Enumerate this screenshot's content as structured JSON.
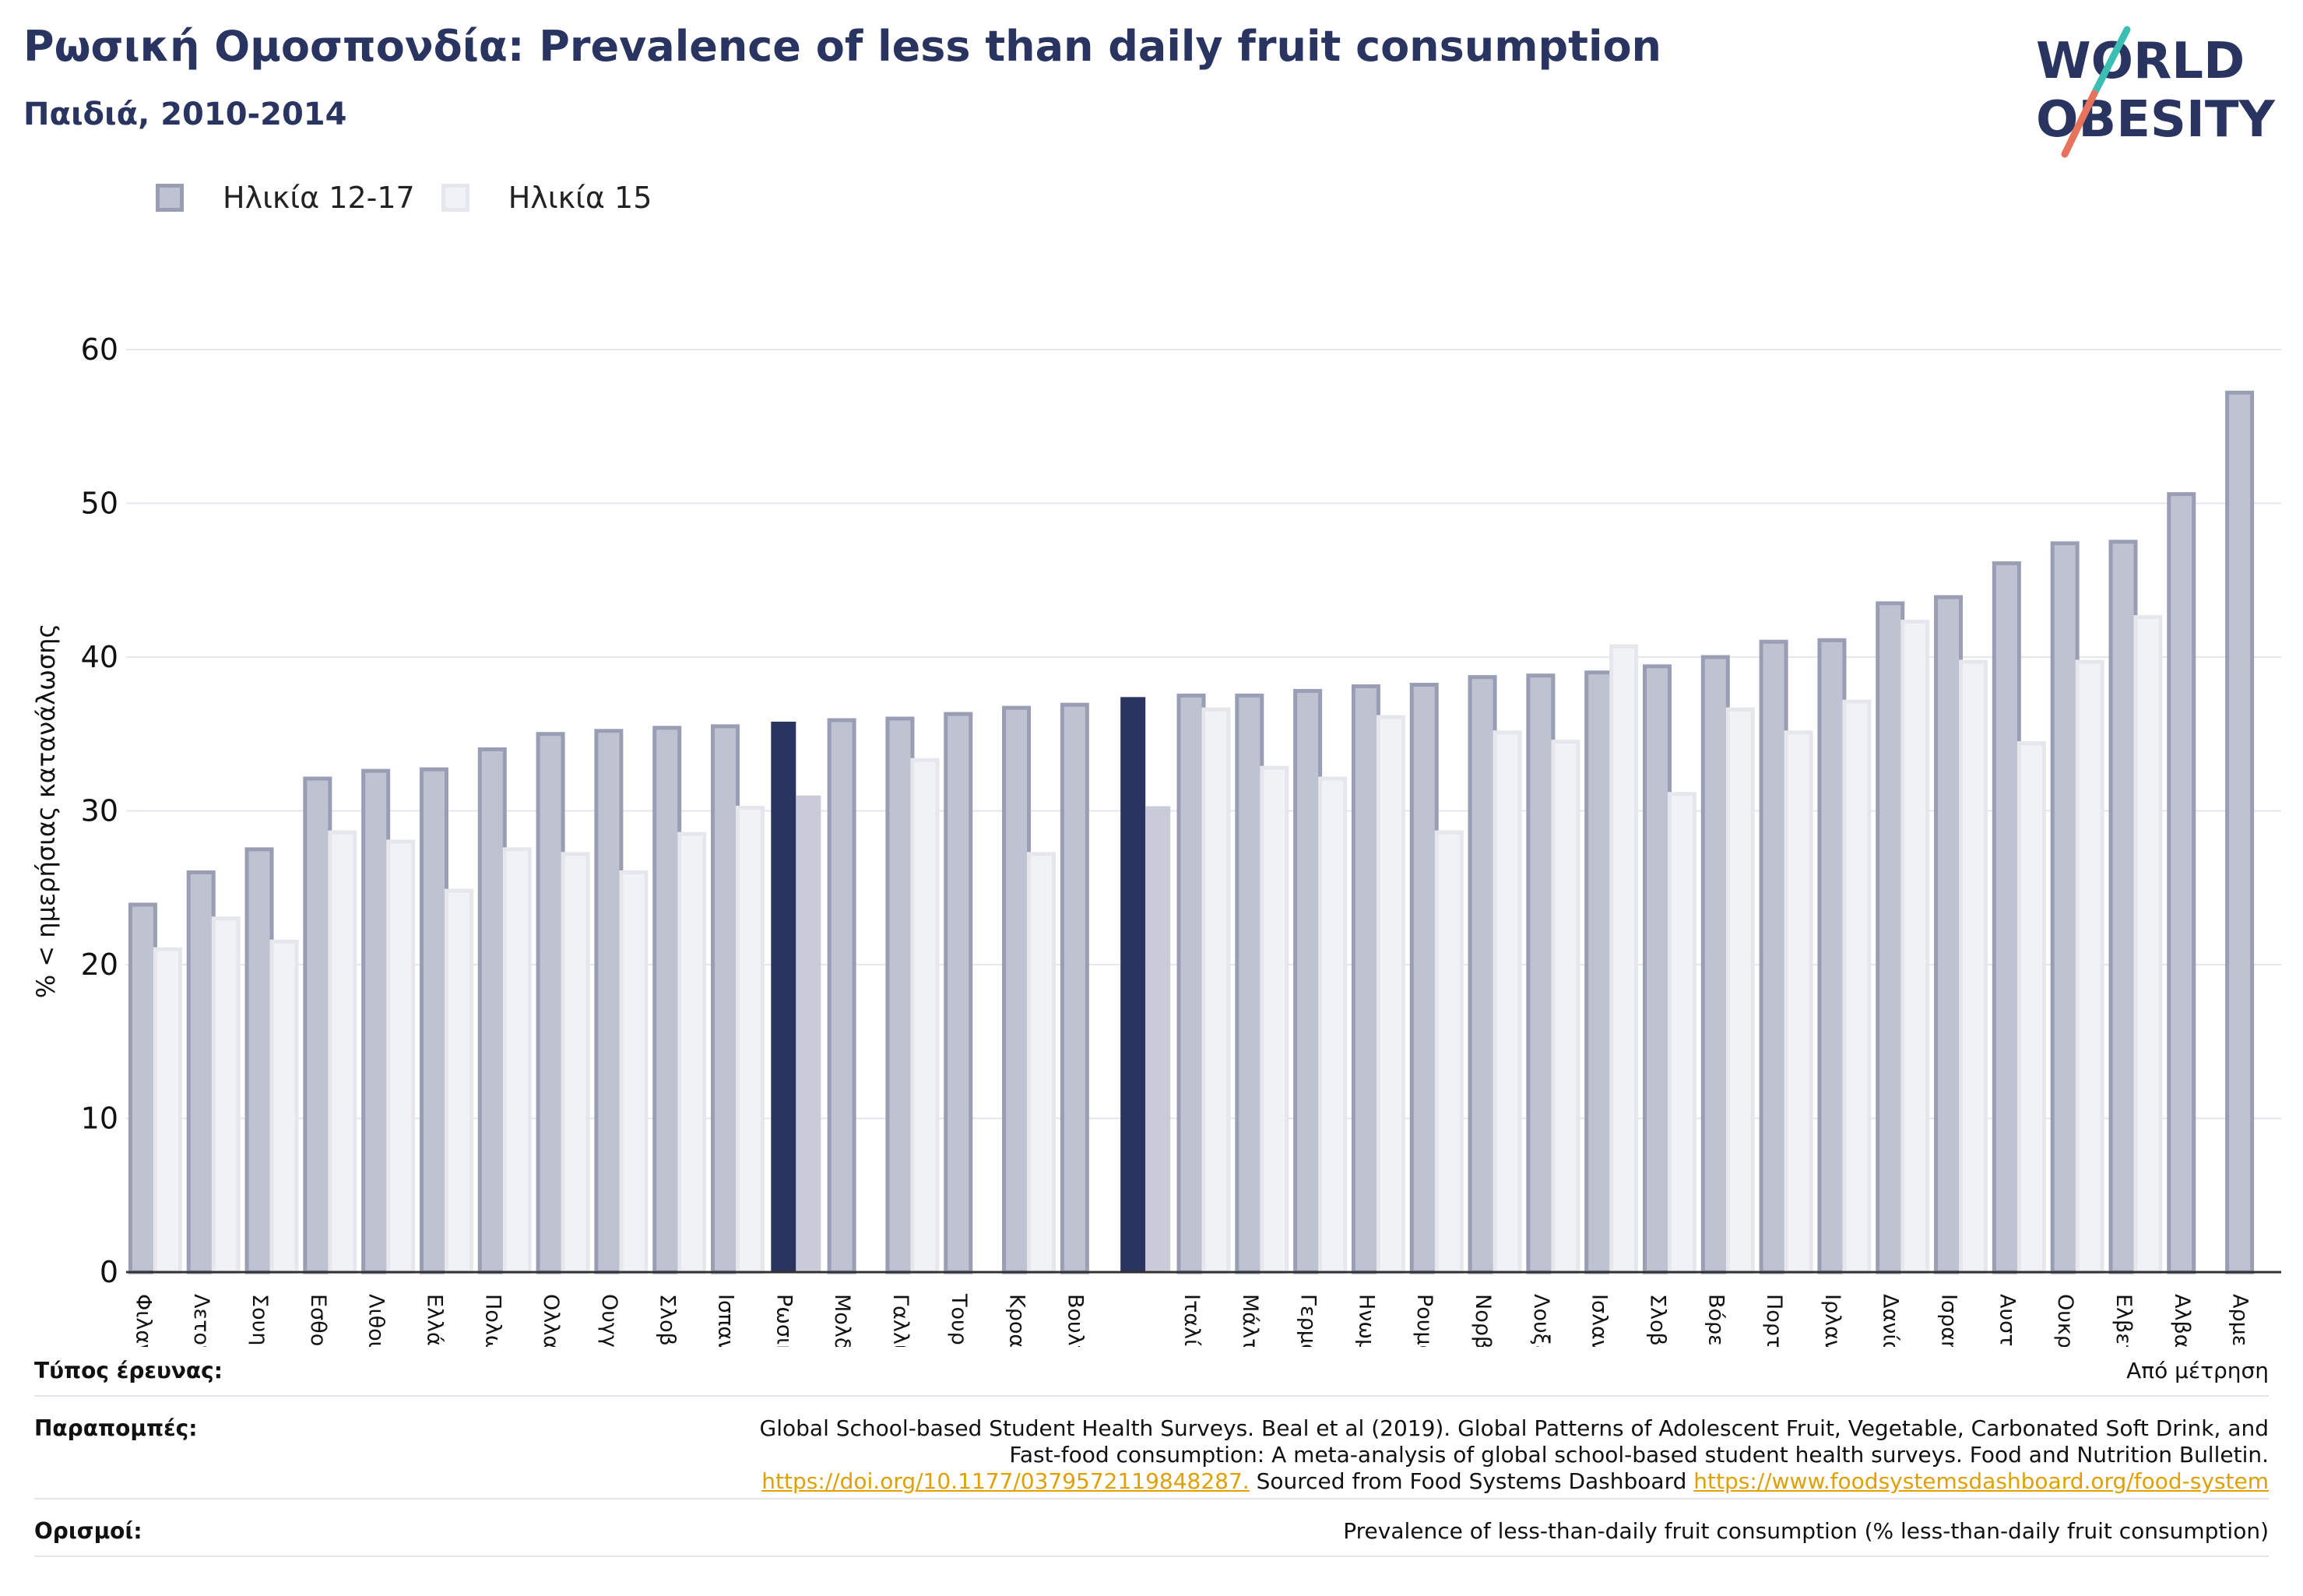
{
  "header": {
    "title": "Ρωσική Ομοσπονδία: Prevalence of less than daily fruit consumption",
    "subtitle": "Παιδιά, 2010-2014"
  },
  "logo": {
    "line1": "WORLD",
    "line2": "OBESITY"
  },
  "legend": {
    "series_a": "Ηλικία 12-17",
    "series_b": "Ηλικία 15"
  },
  "colors": {
    "series_a_fill": "#bfc2d0",
    "series_a_stroke": "#9a9eb4",
    "series_b_fill": "#f1f2f5",
    "series_b_stroke": "#e6e7ec",
    "highlight_a": "#2a3461",
    "highlight_b": "#c9cbd8",
    "title": "#2a3461",
    "logo_teal": "#3bbfb3",
    "logo_red": "#e8735d",
    "link": "#e0a100"
  },
  "chart_data": {
    "type": "bar",
    "ylabel": "% < ημερήσιας κατανάλωσης",
    "ylim": [
      0,
      60
    ],
    "yticks": [
      0,
      10,
      20,
      30,
      40,
      50,
      60
    ],
    "grid": true,
    "legend_position": "top-left",
    "categories": [
      "Φιλανδία",
      "Λετονία",
      "Σουηδία",
      "Εσθονία",
      "Λιθουανία",
      "Ελλάδα",
      "Πολωνία",
      "Ολλανδία",
      "Ουγγαρία",
      "Σλοβακία",
      "Ισπανία",
      "Ρωσική Ομοσπονδία",
      "Μολδαβία",
      "Γαλλία",
      "Τουρκία",
      "Κροατία",
      "Βουλγαρία",
      "",
      "Ιταλία",
      "Μάλτα",
      "Γερμανία",
      "Ηνωμένο Βασίλειο",
      "Ρουμανία",
      "Νορβηγία",
      "Λουξεμβούργο",
      "Ισλανδία",
      "Σλοβενία",
      "Βόρεια Μακεδονία",
      "Πορτογαλία",
      "Ιρλανδία",
      "Δανία",
      "Ισραήλ",
      "Αυστρία",
      "Ουκρανία",
      "Ελβετία",
      "Αλβανία",
      "Αρμενία"
    ],
    "highlight_index": [
      11,
      17
    ],
    "series": [
      {
        "name": "Ηλικία 12-17",
        "values": [
          23.9,
          26.0,
          27.5,
          32.1,
          32.6,
          32.7,
          34.0,
          35.0,
          35.2,
          35.4,
          35.5,
          35.8,
          35.9,
          36.0,
          36.3,
          36.7,
          36.9,
          37.4,
          37.5,
          37.5,
          37.8,
          38.1,
          38.2,
          38.7,
          38.8,
          39.0,
          39.4,
          40.0,
          41.0,
          41.1,
          43.5,
          43.9,
          46.1,
          47.4,
          47.5,
          50.6,
          57.2
        ]
      },
      {
        "name": "Ηλικία 15",
        "values": [
          21.0,
          23.0,
          21.5,
          28.6,
          28.0,
          24.8,
          27.5,
          27.2,
          26.0,
          28.5,
          30.2,
          31.0,
          null,
          33.3,
          null,
          27.2,
          null,
          30.3,
          36.6,
          32.8,
          32.1,
          36.1,
          28.6,
          35.1,
          34.5,
          40.7,
          31.1,
          36.6,
          35.1,
          37.1,
          42.3,
          39.7,
          34.4,
          39.7,
          42.6,
          null,
          null
        ]
      }
    ]
  },
  "footer": {
    "survey_type_label": "Τύπος έρευνας:",
    "survey_type_value": "Από μέτρηση",
    "references_label": "Παραπομπές:",
    "references_line1": "Global School-based Student Health Surveys. Beal et al (2019). Global Patterns of Adolescent Fruit, Vegetable, Carbonated Soft Drink, and",
    "references_line2": "Fast-food consumption: A meta-analysis of global school-based student health surveys. Food and Nutrition Bulletin.",
    "references_link1": "https://doi.org/10.1177/0379572119848287.",
    "references_mid": " Sourced from Food Systems Dashboard ",
    "references_link2": "https://www.foodsystemsdashboard.org/food-system",
    "definitions_label": "Ορισμοί:",
    "definitions_value": "Prevalence of less-than-daily fruit consumption (% less-than-daily fruit consumption)"
  }
}
